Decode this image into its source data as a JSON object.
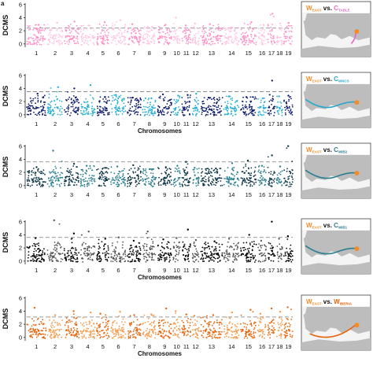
{
  "figure": {
    "panel_letter": "a"
  },
  "chart_data": [
    {
      "type": "scatter",
      "panel": 1,
      "ylabel": "DCMS",
      "xlabel": "",
      "ylim": [
        -0.5,
        6.2
      ],
      "yticks": [
        0,
        2,
        4,
        6
      ],
      "threshold": 2.4,
      "categories": [
        "1",
        "2",
        "3",
        "4",
        "5",
        "6",
        "7",
        "8",
        "9",
        "10",
        "11",
        "12",
        "13",
        "14",
        "15",
        "16",
        "17",
        "18",
        "19"
      ],
      "colors": [
        "#ff8fc7",
        "#ffc4e0"
      ],
      "peak_values": [
        2.9,
        3.2,
        3.4,
        2.8,
        3.3,
        3.6,
        3.0,
        2.6,
        2.9,
        4.0,
        2.8,
        3.1,
        3.0,
        2.5,
        3.3,
        2.9,
        4.6,
        3.1,
        3.2
      ],
      "legend": {
        "left": "W",
        "left_sub": "EAST",
        "vs": "vs.",
        "right": "C",
        "right_sub": "TABLE",
        "left_color": "#f28c28",
        "right_color": "#e767c4"
      }
    },
    {
      "type": "scatter",
      "panel": 2,
      "ylabel": "DCMS",
      "xlabel": "Chromosomes",
      "ylim": [
        -0.5,
        6.2
      ],
      "yticks": [
        0,
        2,
        4,
        6
      ],
      "threshold": 3.5,
      "categories": [
        "1",
        "2",
        "3",
        "4",
        "5",
        "6",
        "7",
        "8",
        "9",
        "10",
        "11",
        "12",
        "13",
        "14",
        "15",
        "16",
        "17",
        "18",
        "19"
      ],
      "colors": [
        "#0e1b6b",
        "#26afd1"
      ],
      "peak_values": [
        3.2,
        4.2,
        4.0,
        4.5,
        2.7,
        3.0,
        2.6,
        2.5,
        3.1,
        2.9,
        3.0,
        3.2,
        2.6,
        2.8,
        2.7,
        2.5,
        5.2,
        2.8,
        2.9
      ],
      "legend": {
        "left": "W",
        "left_sub": "EAST",
        "vs": "vs.",
        "right": "C",
        "right_sub": "WNCS",
        "left_color": "#f28c28",
        "right_color": "#2aa6cc"
      }
    },
    {
      "type": "scatter",
      "panel": 3,
      "ylabel": "DCMS",
      "xlabel": "",
      "ylim": [
        -0.5,
        6.2
      ],
      "yticks": [
        0,
        2,
        4,
        6
      ],
      "threshold": 3.6,
      "categories": [
        "1",
        "2",
        "3",
        "4",
        "5",
        "6",
        "7",
        "8",
        "9",
        "10",
        "11",
        "12",
        "13",
        "14",
        "15",
        "16",
        "17",
        "18",
        "19"
      ],
      "colors": [
        "#0b3444",
        "#2a7f8f"
      ],
      "peak_values": [
        2.8,
        5.3,
        3.3,
        3.0,
        2.7,
        2.9,
        3.1,
        2.5,
        2.8,
        3.0,
        3.6,
        2.7,
        2.6,
        3.4,
        3.8,
        3.0,
        4.6,
        2.9,
        6.0
      ],
      "legend": {
        "left": "W",
        "left_sub": "EAST",
        "vs": "vs.",
        "right": "C",
        "right_sub": "WIB2",
        "left_color": "#f28c28",
        "right_color": "#2a7f8f"
      }
    },
    {
      "type": "scatter",
      "panel": 4,
      "ylabel": "DCMS",
      "xlabel": "Chromosomes",
      "ylim": [
        -0.5,
        6.2
      ],
      "yticks": [
        0,
        2,
        4,
        6
      ],
      "threshold": 3.6,
      "categories": [
        "1",
        "2",
        "3",
        "4",
        "5",
        "6",
        "7",
        "8",
        "9",
        "10",
        "11",
        "12",
        "13",
        "14",
        "15",
        "16",
        "17",
        "18",
        "19"
      ],
      "colors": [
        "#000000",
        "#555555"
      ],
      "peak_values": [
        3.5,
        6.2,
        4.2,
        4.5,
        3.4,
        3.6,
        3.1,
        4.5,
        3.3,
        3.5,
        4.8,
        3.2,
        3.0,
        3.4,
        4.0,
        3.1,
        6.0,
        3.4,
        3.8
      ],
      "legend": {
        "left": "W",
        "left_sub": "EAST",
        "vs": "vs.",
        "right": "C",
        "right_sub": "WIB1",
        "left_color": "#f28c28",
        "right_color": "#2a7f8f"
      }
    },
    {
      "type": "scatter",
      "panel": 5,
      "ylabel": "DCMS",
      "xlabel": "Chromosomes",
      "ylim": [
        -0.5,
        6.2
      ],
      "yticks": [
        0,
        2,
        4,
        6
      ],
      "threshold": 3.1,
      "categories": [
        "1",
        "2",
        "3",
        "4",
        "5",
        "6",
        "7",
        "8",
        "9",
        "10",
        "11",
        "12",
        "13",
        "14",
        "15",
        "16",
        "17",
        "18",
        "19"
      ],
      "colors": [
        "#e8630a",
        "#f59a4a"
      ],
      "peak_values": [
        4.5,
        3.4,
        4.0,
        3.8,
        3.6,
        3.9,
        3.4,
        3.5,
        4.4,
        4.0,
        3.5,
        3.3,
        3.4,
        3.8,
        4.2,
        3.6,
        4.4,
        3.9,
        4.6
      ],
      "legend": {
        "left": "W",
        "left_sub": "EAST",
        "vs": "vs.",
        "right": "W",
        "right_sub": "IBERIA",
        "left_color": "#f28c28",
        "right_color": "#e8630a"
      }
    }
  ]
}
